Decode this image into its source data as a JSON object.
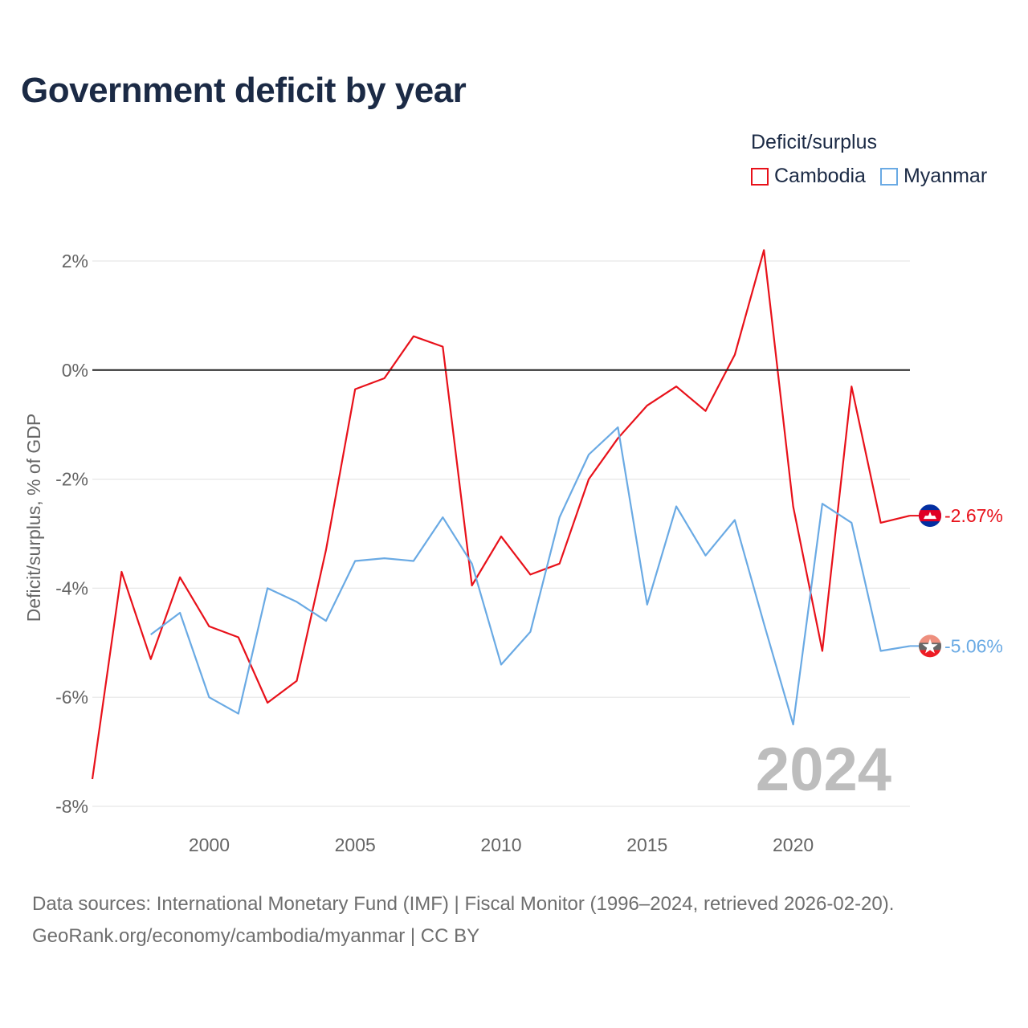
{
  "title": "Government deficit by year",
  "legend": {
    "title": "Deficit/surplus",
    "items": [
      {
        "label": "Cambodia",
        "color": "#e8111a"
      },
      {
        "label": "Myanmar",
        "color": "#6aaae4"
      }
    ]
  },
  "source": {
    "line1": "Data sources: International Monetary Fund (IMF) | Fiscal Monitor (1996–2024, retrieved 2026-02-20).",
    "line2": "GeoRank.org/economy/cambodia/myanmar | CC BY"
  },
  "chart_data": {
    "type": "line",
    "title": "Government deficit by year",
    "xlabel": "",
    "ylabel": "Deficit/surplus, % of GDP",
    "xlim": [
      1996,
      2024
    ],
    "ylim": [
      -8,
      2
    ],
    "x_ticks": [
      2000,
      2005,
      2010,
      2015,
      2020
    ],
    "y_ticks": [
      {
        "value": 2,
        "label": "2%"
      },
      {
        "value": 0,
        "label": "0%"
      },
      {
        "value": -2,
        "label": "-2%"
      },
      {
        "value": -4,
        "label": "-4%"
      },
      {
        "value": -6,
        "label": "-6%"
      },
      {
        "value": -8,
        "label": "-8%"
      }
    ],
    "year_label": "2024",
    "series": [
      {
        "name": "Cambodia",
        "color": "#e8111a",
        "end_label": "-2.67%",
        "icon": "cambodia-flag",
        "x": [
          1996,
          1997,
          1998,
          1999,
          2000,
          2001,
          2002,
          2003,
          2004,
          2005,
          2006,
          2007,
          2008,
          2009,
          2010,
          2011,
          2012,
          2013,
          2014,
          2015,
          2016,
          2017,
          2018,
          2019,
          2020,
          2021,
          2022,
          2023,
          2024
        ],
        "values": [
          -7.5,
          -3.7,
          -5.3,
          -3.8,
          -4.7,
          -4.9,
          -6.1,
          -5.7,
          -3.3,
          -0.35,
          -0.15,
          0.62,
          0.43,
          -3.95,
          -3.05,
          -3.75,
          -3.55,
          -2.0,
          -1.25,
          -0.65,
          -0.3,
          -0.75,
          0.28,
          2.2,
          -2.5,
          -5.15,
          -0.3,
          -2.8,
          -2.67
        ]
      },
      {
        "name": "Myanmar",
        "color": "#6aaae4",
        "end_label": "-5.06%",
        "icon": "myanmar-flag",
        "x": [
          1998,
          1999,
          2000,
          2001,
          2002,
          2003,
          2004,
          2005,
          2006,
          2007,
          2008,
          2009,
          2010,
          2011,
          2012,
          2013,
          2014,
          2015,
          2016,
          2017,
          2018,
          2019,
          2020,
          2021,
          2022,
          2023,
          2024
        ],
        "values": [
          -4.85,
          -4.45,
          -6.0,
          -6.3,
          -4.0,
          -4.25,
          -4.6,
          -3.5,
          -3.45,
          -3.5,
          -2.7,
          -3.55,
          -5.4,
          -4.8,
          -2.7,
          -1.55,
          -1.05,
          -4.3,
          -2.5,
          -3.4,
          -2.75,
          -4.65,
          -6.5,
          -2.45,
          -2.8,
          -5.15,
          -5.06
        ]
      }
    ]
  }
}
